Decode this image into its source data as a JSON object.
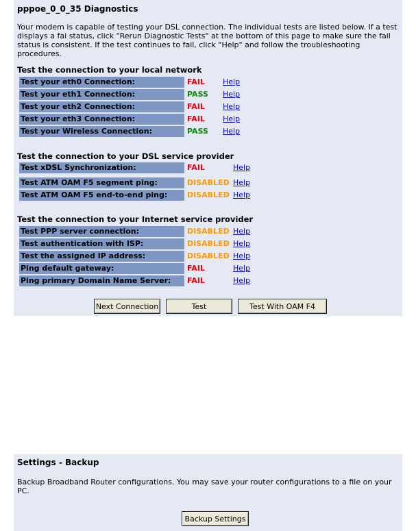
{
  "diagnostics": {
    "title": "pppoe_0_0_35 Diagnostics",
    "intro": "Your modem is capable of testing your DSL connection. The individual tests are listed below. If a test displays a fai status, click \"Rerun Diagnostic Tests\" at the bottom of this page to make sure the fail status is consistent. If the test continues to fail, click \"Help\" and follow the troubleshooting procedures.",
    "help_label": "Help",
    "sections": [
      {
        "heading": "Test the connection to your local network",
        "tests": [
          {
            "label": "Test your eth0 Connection:",
            "status": "FAIL"
          },
          {
            "label": "Test your eth1 Connection:",
            "status": "PASS"
          },
          {
            "label": "Test your eth2 Connection:",
            "status": "FAIL"
          },
          {
            "label": "Test your eth3 Connection:",
            "status": "FAIL"
          },
          {
            "label": "Test your Wireless Connection:",
            "status": "PASS"
          }
        ]
      },
      {
        "heading": "Test the connection to your DSL service provider",
        "tests": [
          {
            "label": "Test xDSL Synchronization:",
            "status": "FAIL"
          },
          {
            "label": "Test ATM OAM F5 segment ping:",
            "status": "DISABLED"
          },
          {
            "label": "Test ATM OAM F5 end-to-end ping:",
            "status": "DISABLED"
          }
        ]
      },
      {
        "heading": "Test the connection to your Internet service provider",
        "tests": [
          {
            "label": "Test PPP server connection:",
            "status": "DISABLED"
          },
          {
            "label": "Test authentication with ISP:",
            "status": "DISABLED"
          },
          {
            "label": "Test the assigned IP address:",
            "status": "DISABLED"
          },
          {
            "label": "Ping default gateway:",
            "status": "FAIL"
          },
          {
            "label": "Ping primary Domain Name Server:",
            "status": "FAIL"
          }
        ]
      }
    ],
    "buttons": {
      "next_connection": "Next Connection",
      "test": "Test",
      "test_oam_f4": "Test With OAM F4"
    }
  },
  "backup": {
    "title": "Settings - Backup",
    "text": "Backup Broadband Router configurations. You may save your router configurations to a file on your PC.",
    "button": "Backup Settings"
  },
  "colors": {
    "panel_bg": "#e5e9f4",
    "label_bg": "#7e97c4",
    "fail": "#e8000e",
    "pass": "#0d8a0d",
    "disabled": "#ff9900",
    "link": "#0000cc"
  }
}
